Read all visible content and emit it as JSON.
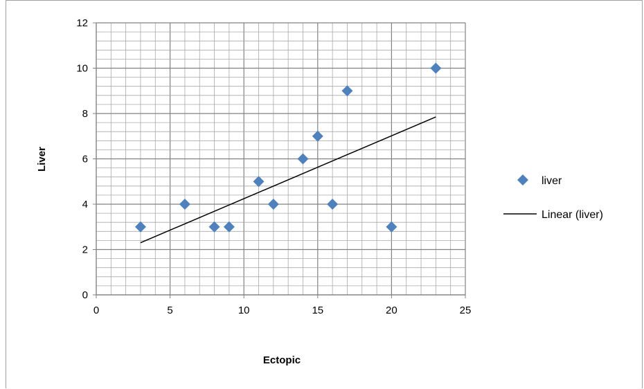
{
  "chart_data": {
    "type": "scatter",
    "xlabel": "Ectopic",
    "ylabel": "Liver",
    "xlim": [
      0,
      25
    ],
    "ylim": [
      0,
      12
    ],
    "x_ticks": [
      0,
      5,
      10,
      15,
      20,
      25
    ],
    "y_ticks": [
      0,
      2,
      4,
      6,
      8,
      10,
      12
    ],
    "x_tick_labels": [
      "0",
      "5",
      "10",
      "15",
      "20",
      "25"
    ],
    "y_tick_labels": [
      "0",
      "2",
      "4",
      "6",
      "8",
      "10",
      "12"
    ],
    "grid": true,
    "legend_position": "right",
    "series": [
      {
        "name": "liver",
        "marker": "diamond",
        "color": "#4f81bd",
        "points": [
          {
            "x": 3,
            "y": 3
          },
          {
            "x": 6,
            "y": 4
          },
          {
            "x": 8,
            "y": 3
          },
          {
            "x": 9,
            "y": 3
          },
          {
            "x": 11,
            "y": 5
          },
          {
            "x": 12,
            "y": 4
          },
          {
            "x": 14,
            "y": 6
          },
          {
            "x": 15,
            "y": 7
          },
          {
            "x": 16,
            "y": 4
          },
          {
            "x": 17,
            "y": 9
          },
          {
            "x": 20,
            "y": 3
          },
          {
            "x": 23,
            "y": 10
          }
        ]
      }
    ],
    "trendline": {
      "name": "Linear (liver)",
      "type": "linear",
      "color": "#000000",
      "x": [
        3,
        23
      ],
      "y": [
        2.3,
        7.85
      ]
    }
  }
}
